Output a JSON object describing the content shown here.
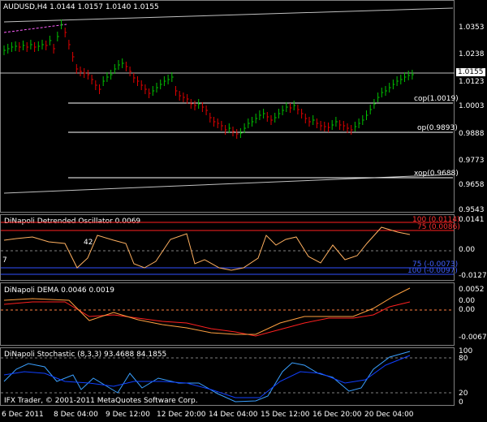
{
  "header": {
    "symbol_info": "AUDUSD,H4  1.0144 1.0157 1.0140 1.0155"
  },
  "price_pane": {
    "axis_labels": [
      "1.0353",
      "1.0238",
      "1.0123",
      "1.0003",
      "0.9888",
      "0.9773",
      "0.9658",
      "0.9543"
    ],
    "current_price": "1.0155",
    "levels": [
      {
        "label": "cop(1.0019)"
      },
      {
        "label": "op(0.9893)"
      },
      {
        "label": "xop(0.9688)"
      }
    ]
  },
  "oscillator_pane": {
    "title": "DiNapoli Detrended Oscillator 0.0069",
    "axis_labels": [
      "0.0141",
      "0.00",
      "-0.0127"
    ],
    "band_labels": [
      "100 (0.0114)",
      "75 (0.0086)",
      "75 (-0.0073)",
      "100 (-0.0097)"
    ],
    "marker_left": "7",
    "marker_mid": "42"
  },
  "dema_pane": {
    "title": "DiNapoli DEMA 0.0046 0.0019",
    "axis_labels": [
      "0.0052",
      "0.00",
      "0.00",
      "-0.0067"
    ]
  },
  "stoch_pane": {
    "title": "DiNapoli Stochastic (8,3,3) 93.4688 84.1855",
    "axis_labels": [
      "100",
      "80",
      "20",
      "0"
    ],
    "copyright": "IFX Trader, © 2001-2011 MetaQuotes Software Corp."
  },
  "time_axis": [
    "6 Dec 2011",
    "8 Dec 04:00",
    "9 Dec 12:00",
    "12 Dec 20:00",
    "14 Dec 04:00",
    "15 Dec 12:00",
    "16 Dec 20:00",
    "20 Dec 04:00"
  ],
  "colors": {
    "bull": "#00c000",
    "bear": "#e00000",
    "oscillator": "#ffb060",
    "band_red": "#ff2020",
    "band_blue": "#3050ff",
    "dema_fast": "#ffa040",
    "dema_slow": "#ff2020",
    "stoch_k": "#3aa0ff",
    "stoch_d": "#1040ff",
    "level_line": "#ffffff"
  }
}
